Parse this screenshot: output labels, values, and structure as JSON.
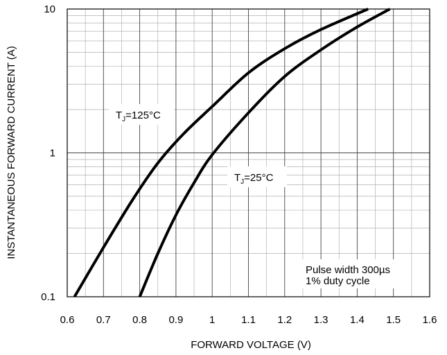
{
  "chart_data": {
    "type": "line",
    "title": "",
    "xlabel": "FORWARD VOLTAGE (V)",
    "ylabel": "INSTANTANEOUS FORWARD CURRENT (A)",
    "xlim": [
      0.6,
      1.6
    ],
    "ylim": [
      0.1,
      10
    ],
    "yscale": "log",
    "grid": true,
    "x_ticks": [
      "0.6",
      "0.7",
      "0.8",
      "0.9",
      "1",
      "1.1",
      "1.2",
      "1.3",
      "1.4",
      "1.5",
      "1.6"
    ],
    "y_ticks": [
      "0.1",
      "1",
      "10"
    ],
    "series": [
      {
        "name": "TJ=125°C",
        "x": [
          0.62,
          0.7,
          0.78,
          0.85,
          0.92,
          1.0,
          1.1,
          1.2,
          1.3,
          1.43
        ],
        "y": [
          0.1,
          0.22,
          0.47,
          0.85,
          1.35,
          2.1,
          3.6,
          5.3,
          7.2,
          10
        ]
      },
      {
        "name": "TJ=25°C",
        "x": [
          0.8,
          0.85,
          0.9,
          0.95,
          1.0,
          1.1,
          1.2,
          1.3,
          1.4,
          1.49
        ],
        "y": [
          0.1,
          0.2,
          0.37,
          0.62,
          0.97,
          1.9,
          3.4,
          5.2,
          7.5,
          10
        ]
      }
    ],
    "annotations": {
      "label_125": {
        "main": "T",
        "sub": "J",
        "rest": "=125°C"
      },
      "label_25": {
        "main": "T",
        "sub": "J",
        "rest": "=25°C"
      },
      "note_line1": "Pulse width 300µs",
      "note_line2": "1% duty cycle"
    }
  }
}
